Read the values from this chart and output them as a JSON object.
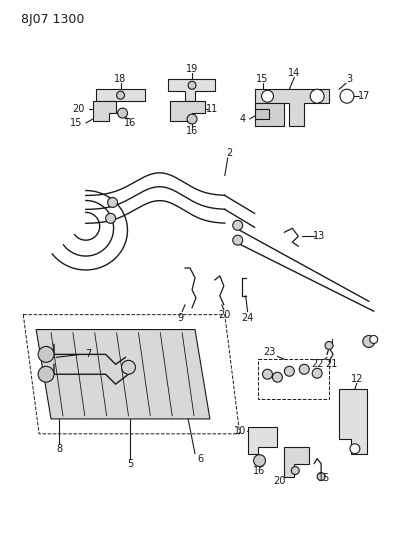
{
  "title": "8J07 1300",
  "bg_color": "#ffffff",
  "line_color": "#1a1a1a",
  "text_color": "#1a1a1a",
  "figsize": [
    3.94,
    5.33
  ],
  "dpi": 100
}
